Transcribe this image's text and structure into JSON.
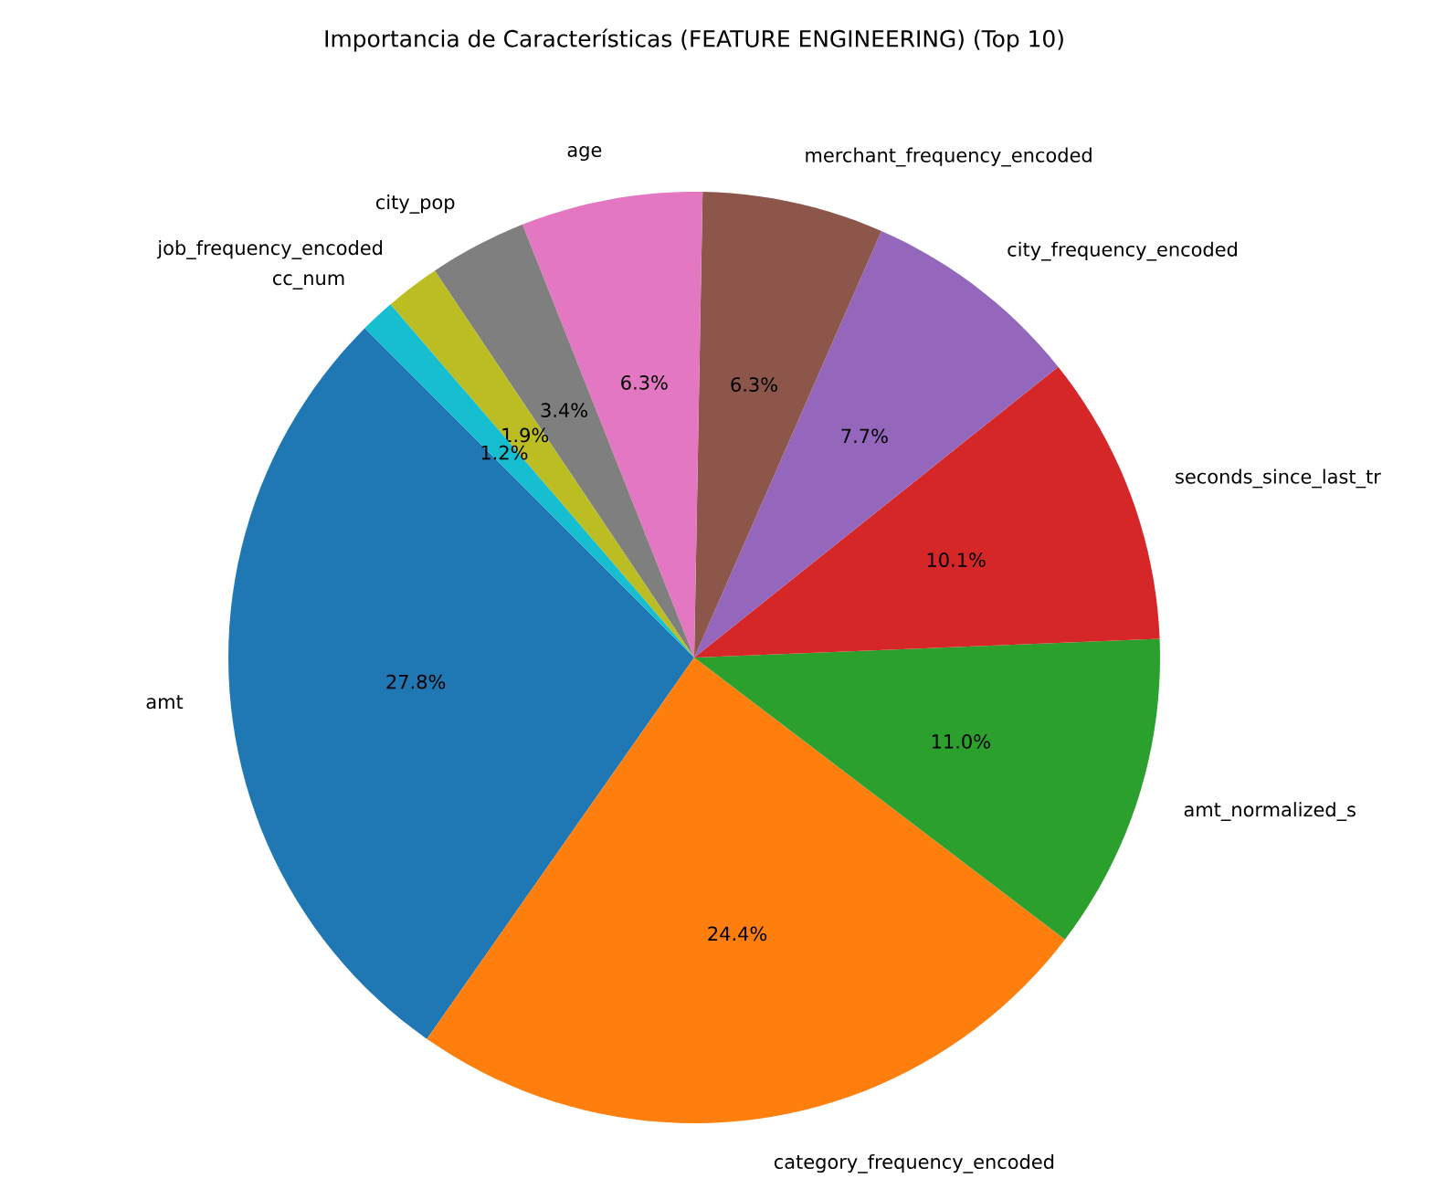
{
  "chart_data": {
    "type": "pie",
    "title": "Importancia de Características (FEATURE ENGINEERING) (Top 10)",
    "categories": [
      "amt",
      "category_frequency_encoded",
      "amt_normalized_s",
      "seconds_since_last_tr",
      "city_frequency_encoded",
      "merchant_frequency_encoded",
      "age",
      "city_pop",
      "job_frequency_encoded",
      "cc_num"
    ],
    "values": [
      27.8,
      24.4,
      11.0,
      10.1,
      7.7,
      6.3,
      6.3,
      3.4,
      1.9,
      1.2
    ],
    "colors": [
      "#1f77b4",
      "#ff7f0e",
      "#2ca02c",
      "#d62728",
      "#9467bd",
      "#8c564b",
      "#e377c2",
      "#7f7f7f",
      "#bcbd22",
      "#17becf"
    ],
    "value_labels": [
      "27.8%",
      "24.4%",
      "11.0%",
      "10.1%",
      "7.7%",
      "6.3%",
      "6.3%",
      "3.4%",
      "1.9%",
      "1.2%"
    ]
  }
}
